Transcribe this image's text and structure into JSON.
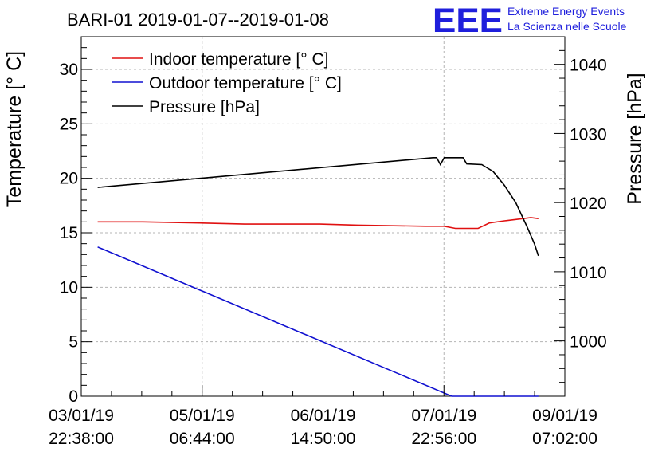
{
  "chart_data": {
    "type": "line",
    "title": "BARI-01 2019-01-07--2019-01-08",
    "ylabel": "Temperature [° C]",
    "y2label": "Pressure [hPa]",
    "xlabel": "",
    "xlim": [
      "2019-01-03T22:38:00",
      "2019-01-09T07:02:00"
    ],
    "ylim": [
      0,
      33
    ],
    "y2lim": [
      992,
      1044
    ],
    "grid": true,
    "legend_position": "top-left",
    "x_ticks": [
      {
        "date": "03/01/19",
        "time": "22:38:00",
        "t": "2019-01-03T22:38:00"
      },
      {
        "date": "05/01/19",
        "time": "06:44:00",
        "t": "2019-01-05T06:44:00"
      },
      {
        "date": "06/01/19",
        "time": "14:50:00",
        "t": "2019-01-06T14:50:00"
      },
      {
        "date": "07/01/19",
        "time": "22:56:00",
        "t": "2019-01-07T22:56:00"
      },
      {
        "date": "09/01/19",
        "time": "07:02:00",
        "t": "2019-01-09T07:02:00"
      }
    ],
    "y_ticks": [
      0,
      5,
      10,
      15,
      20,
      25,
      30
    ],
    "y_tick_labels": [
      "0",
      "5",
      "10",
      "15",
      "20",
      "25",
      "30"
    ],
    "y2_ticks": [
      1000,
      1010,
      1020,
      1030,
      1040
    ],
    "y2_tick_labels": [
      "1000",
      "1010",
      "1020",
      "1030",
      "1040"
    ],
    "series": [
      {
        "name": "Indoor temperature [° C]",
        "axis": "left",
        "color": "#e01010",
        "points": [
          [
            "2019-01-04T03:00",
            16.0
          ],
          [
            "2019-01-04T15:00",
            16.0
          ],
          [
            "2019-01-05T06:00",
            15.9
          ],
          [
            "2019-01-05T18:00",
            15.8
          ],
          [
            "2019-01-06T14:00",
            15.8
          ],
          [
            "2019-01-07T00:00",
            15.7
          ],
          [
            "2019-01-07T18:00",
            15.6
          ],
          [
            "2019-01-07T23:00",
            15.6
          ],
          [
            "2019-01-08T02:00",
            15.4
          ],
          [
            "2019-01-08T08:00",
            15.4
          ],
          [
            "2019-01-08T11:00",
            15.9
          ],
          [
            "2019-01-08T15:00",
            16.1
          ],
          [
            "2019-01-08T20:00",
            16.3
          ],
          [
            "2019-01-08T22:00",
            16.4
          ],
          [
            "2019-01-09T00:00",
            16.3
          ]
        ]
      },
      {
        "name": "Outdoor temperature [° C]",
        "axis": "left",
        "color": "#1010d0",
        "points": [
          [
            "2019-01-04T03:00",
            13.7
          ],
          [
            "2019-01-08T01:00",
            0.0
          ],
          [
            "2019-01-09T00:00",
            0.0
          ]
        ]
      },
      {
        "name": "Pressure [hPa]",
        "axis": "right",
        "color": "#000000",
        "points": [
          [
            "2019-01-04T03:00",
            1022.2
          ],
          [
            "2019-01-07T20:00",
            1026.5
          ],
          [
            "2019-01-07T21:00",
            1026.5
          ],
          [
            "2019-01-07T22:00",
            1025.5
          ],
          [
            "2019-01-07T23:00",
            1026.5
          ],
          [
            "2019-01-08T04:00",
            1026.5
          ],
          [
            "2019-01-08T05:00",
            1025.6
          ],
          [
            "2019-01-08T09:00",
            1025.5
          ],
          [
            "2019-01-08T12:00",
            1024.5
          ],
          [
            "2019-01-08T15:00",
            1022.5
          ],
          [
            "2019-01-08T18:00",
            1020.0
          ],
          [
            "2019-01-08T21:00",
            1016.5
          ],
          [
            "2019-01-08T23:00",
            1014.0
          ],
          [
            "2019-01-09T00:00",
            1012.3
          ]
        ]
      }
    ]
  },
  "logo": {
    "mark": "EEE",
    "line1": "Extreme Energy Events",
    "line2": "La Scienza nelle Scuole",
    "color": "#1f1fdc"
  }
}
